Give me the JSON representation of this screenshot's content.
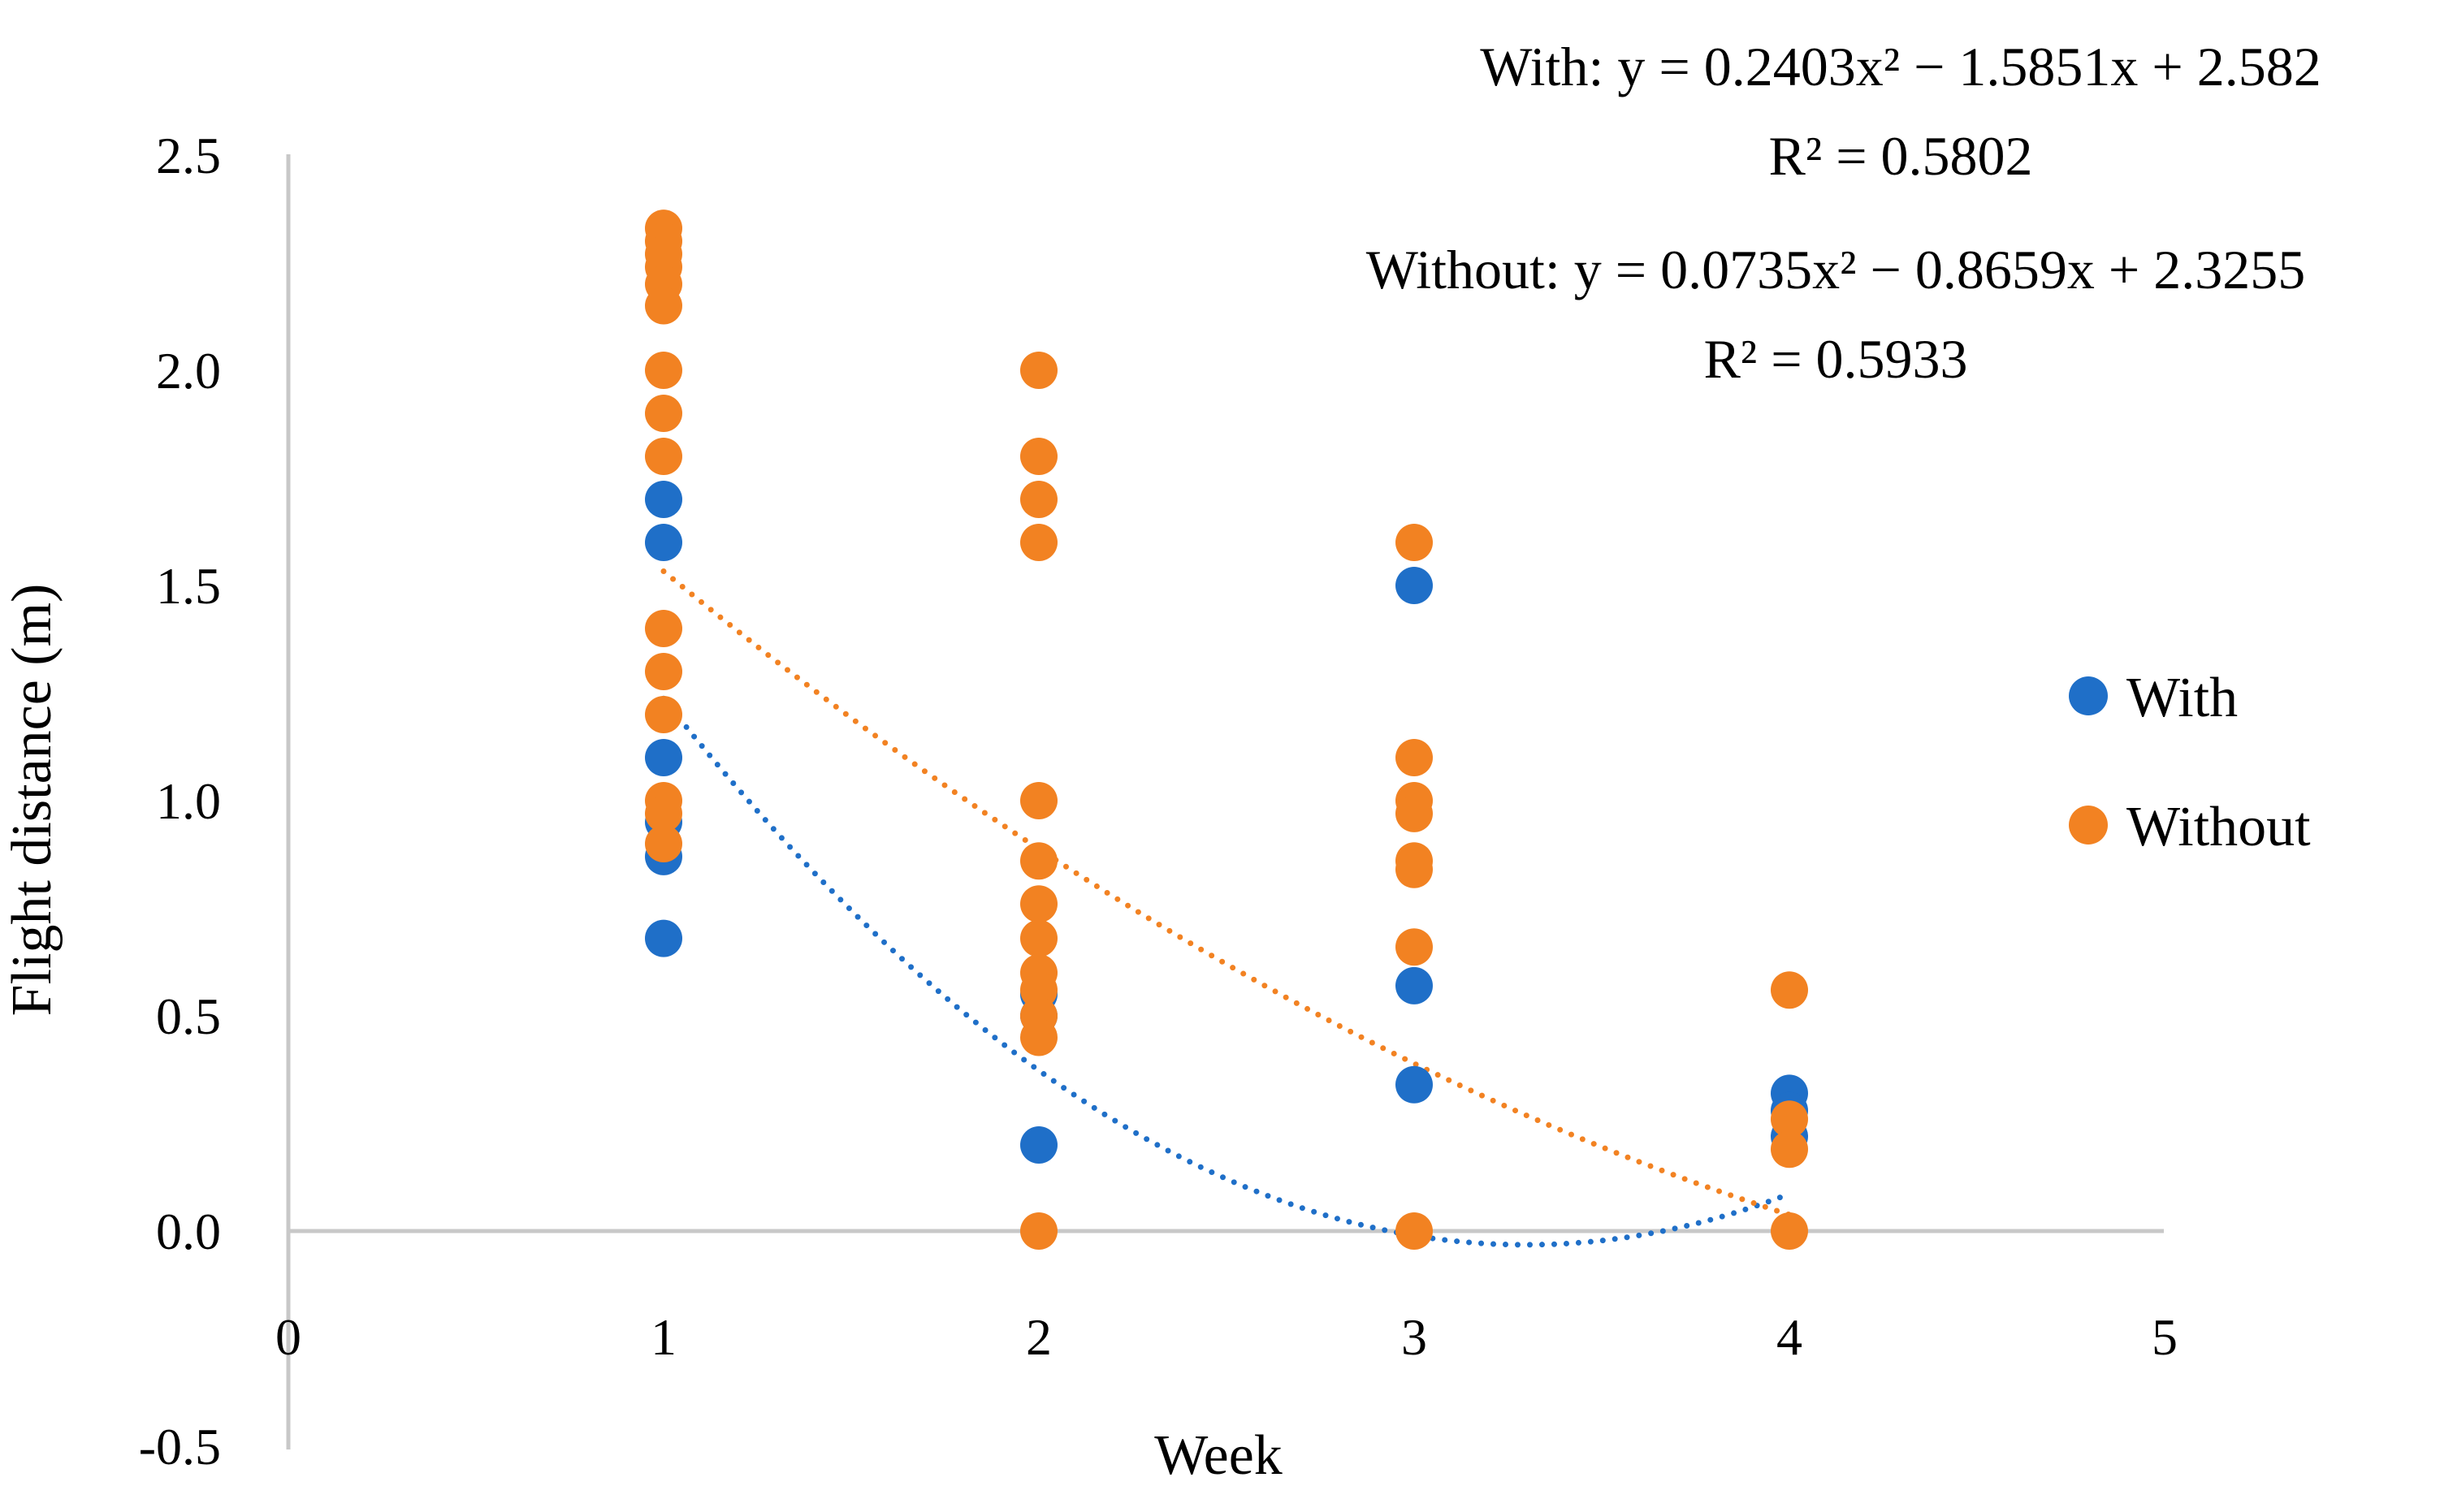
{
  "chart_data": {
    "type": "scatter",
    "title": "",
    "xlabel": "Week",
    "ylabel": "Flight distance (m)",
    "xlim": [
      0,
      5
    ],
    "ylim": [
      -0.5,
      2.5
    ],
    "x_ticks": [
      0,
      1,
      2,
      3,
      4,
      5
    ],
    "x_tick_labels": [
      "0",
      "1",
      "2",
      "3",
      "4",
      "5"
    ],
    "y_ticks": [
      2.5,
      2.0,
      1.5,
      1.0,
      0.5,
      0.0,
      -0.5
    ],
    "y_tick_labels": [
      "2.5",
      "2.0",
      "1.5",
      "1.0",
      "0.5",
      "0.0",
      "-0.5"
    ],
    "grid": false,
    "legend_position": "right",
    "series": [
      {
        "name": "With",
        "color": "#1f6fc8",
        "points": [
          [
            1,
            1.7
          ],
          [
            1,
            1.6
          ],
          [
            1,
            1.1
          ],
          [
            1,
            0.95
          ],
          [
            1,
            0.87
          ],
          [
            1,
            0.68
          ],
          [
            2,
            0.55
          ],
          [
            2,
            0.5
          ],
          [
            2,
            0.2
          ],
          [
            3,
            1.5
          ],
          [
            3,
            0.57
          ],
          [
            3,
            0.34
          ],
          [
            4,
            0.32
          ],
          [
            4,
            0.28
          ],
          [
            4,
            0.22
          ]
        ]
      },
      {
        "name": "Without",
        "color": "#f28222",
        "points": [
          [
            1,
            2.33
          ],
          [
            1,
            2.3
          ],
          [
            1,
            2.27
          ],
          [
            1,
            2.24
          ],
          [
            1,
            2.2
          ],
          [
            1,
            2.15
          ],
          [
            1,
            2.0
          ],
          [
            1,
            1.9
          ],
          [
            1,
            1.8
          ],
          [
            1,
            1.4
          ],
          [
            1,
            1.3
          ],
          [
            1,
            1.2
          ],
          [
            1,
            1.0
          ],
          [
            1,
            0.97
          ],
          [
            1,
            0.9
          ],
          [
            2,
            2.0
          ],
          [
            2,
            1.8
          ],
          [
            2,
            1.7
          ],
          [
            2,
            1.6
          ],
          [
            2,
            1.0
          ],
          [
            2,
            0.86
          ],
          [
            2,
            0.76
          ],
          [
            2,
            0.68
          ],
          [
            2,
            0.6
          ],
          [
            2,
            0.56
          ],
          [
            2,
            0.5
          ],
          [
            2,
            0.45
          ],
          [
            2,
            0.0
          ],
          [
            3,
            1.6
          ],
          [
            3,
            1.1
          ],
          [
            3,
            1.0
          ],
          [
            3,
            0.97
          ],
          [
            3,
            0.86
          ],
          [
            3,
            0.84
          ],
          [
            3,
            0.66
          ],
          [
            3,
            0.0
          ],
          [
            4,
            0.56
          ],
          [
            4,
            0.26
          ],
          [
            4,
            0.19
          ],
          [
            4,
            0.0
          ]
        ]
      }
    ],
    "trendlines": [
      {
        "series": "With",
        "type": "polynomial",
        "coefficients": [
          0.2403,
          -1.5851,
          2.582
        ],
        "x_range": [
          1,
          4
        ],
        "r2": 0.5802
      },
      {
        "series": "Without",
        "type": "polynomial",
        "coefficients": [
          0.0735,
          -0.8659,
          2.3255
        ],
        "x_range": [
          1,
          4
        ],
        "r2": 0.5933
      }
    ],
    "annotations": {
      "with_equation": "With: y = 0.2403x² − 1.5851x + 2.582",
      "with_r2": "R² = 0.5802",
      "without_equation": "Without: y = 0.0735x² − 0.8659x + 2.3255",
      "without_r2": "R² = 0.5933"
    }
  }
}
